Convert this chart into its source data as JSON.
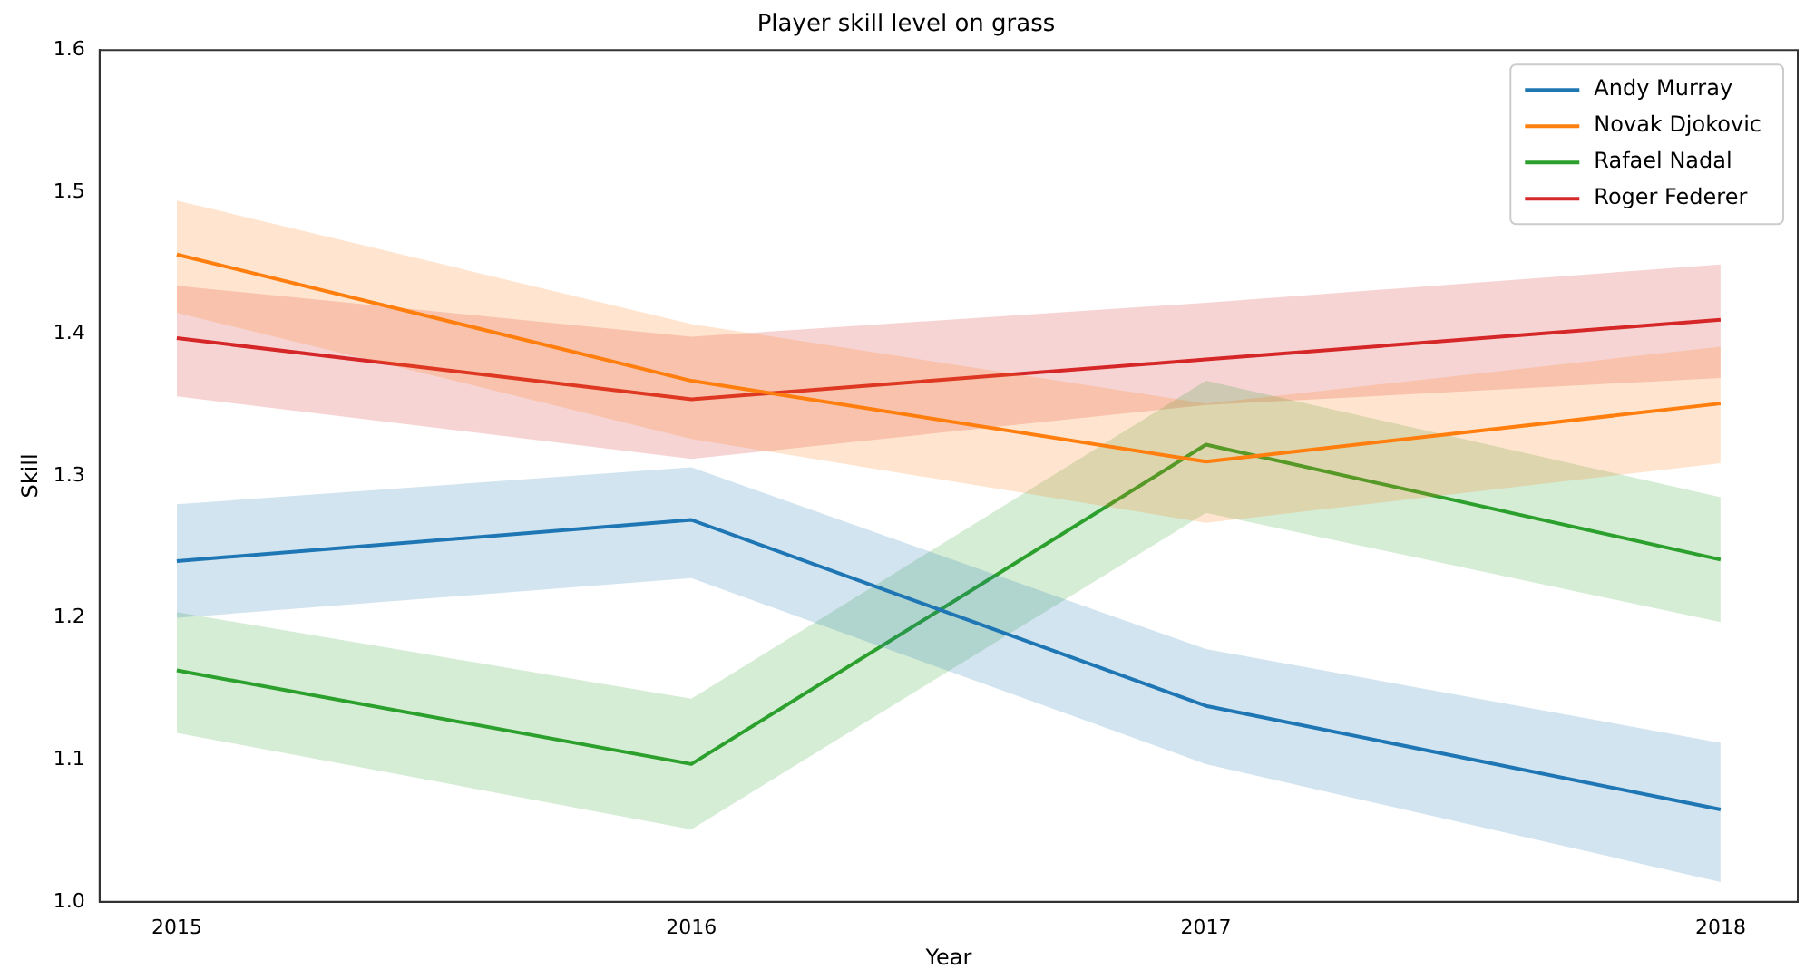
{
  "chart_data": {
    "type": "line",
    "title": "Player skill level on grass",
    "xlabel": "Year",
    "ylabel": "Skill",
    "x": [
      2015,
      2016,
      2017,
      2018
    ],
    "xlim": [
      2014.85,
      2018.15
    ],
    "xticks": [
      2015,
      2016,
      2017,
      2018
    ],
    "ylim": [
      1.0,
      1.6
    ],
    "yticks": [
      {
        "value": 1.0,
        "label": "1.0"
      },
      1.1,
      1.2,
      1.3,
      1.4,
      1.5,
      1.6
    ],
    "grid": false,
    "legend": "top right",
    "marker": "none",
    "series": [
      {
        "name": "Andy Murray",
        "color": "#1f77b4",
        "values": [
          1.24,
          1.269,
          1.138,
          1.065
        ],
        "lower": [
          1.2,
          1.228,
          1.097,
          1.014
        ],
        "upper": [
          1.28,
          1.306,
          1.178,
          1.112
        ]
      },
      {
        "name": "Novak Djokovic",
        "color": "#ff7f0e",
        "values": [
          1.456,
          1.367,
          1.31,
          1.351
        ],
        "lower": [
          1.415,
          1.326,
          1.267,
          1.309
        ],
        "upper": [
          1.494,
          1.407,
          1.351,
          1.391
        ]
      },
      {
        "name": "Rafael Nadal",
        "color": "#2ca02c",
        "values": [
          1.163,
          1.097,
          1.322,
          1.241
        ],
        "lower": [
          1.119,
          1.051,
          1.274,
          1.197
        ],
        "upper": [
          1.204,
          1.143,
          1.367,
          1.285
        ]
      },
      {
        "name": "Roger Federer",
        "color": "#d62728",
        "values": [
          1.397,
          1.354,
          1.382,
          1.41
        ],
        "lower": [
          1.356,
          1.312,
          1.35,
          1.369
        ],
        "upper": [
          1.434,
          1.398,
          1.422,
          1.449
        ]
      }
    ]
  }
}
